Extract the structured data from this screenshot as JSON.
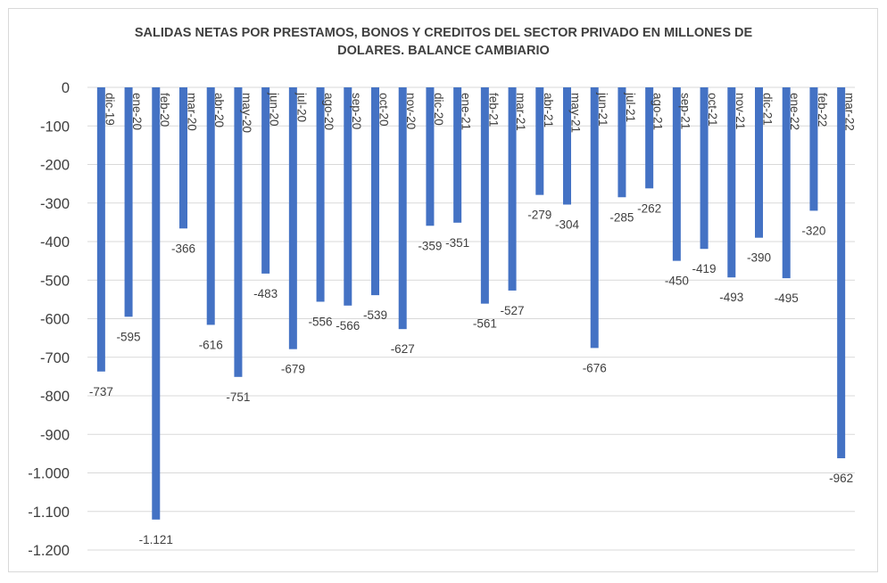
{
  "chart_data": {
    "type": "bar",
    "title_lines": [
      "SALIDAS NETAS POR PRESTAMOS, BONOS Y CREDITOS DEL SECTOR PRIVADO EN MILLONES DE",
      "DOLARES. BALANCE CAMBIARIO"
    ],
    "categories": [
      "dic-19",
      "ene-20",
      "feb-20",
      "mar-20",
      "abr-20",
      "may-20",
      "jun-20",
      "jul-20",
      "ago-20",
      "sep-20",
      "oct-20",
      "nov-20",
      "dic-20",
      "ene-21",
      "feb-21",
      "mar-21",
      "abr-21",
      "may-21",
      "jun-21",
      "jul-21",
      "ago-21",
      "sep-21",
      "oct-21",
      "nov-21",
      "dic-21",
      "ene-22",
      "feb-22",
      "mar-22"
    ],
    "values": [
      -737,
      -595,
      -1121,
      -366,
      -616,
      -751,
      -483,
      -679,
      -556,
      -566,
      -539,
      -627,
      -359,
      -351,
      -561,
      -527,
      -279,
      -304,
      -676,
      -285,
      -262,
      -450,
      -419,
      -493,
      -390,
      -495,
      -320,
      -962
    ],
    "value_labels": [
      "-737",
      "-595",
      "-1.121",
      "-366",
      "-616",
      "-751",
      "-483",
      "-679",
      "-556",
      "-566",
      "-539",
      "-627",
      "-359",
      "-351",
      "-561",
      "-527",
      "-279",
      "-304",
      "-676",
      "-285",
      "-262",
      "-450",
      "-419",
      "-493",
      "-390",
      "-495",
      "-320",
      "-962"
    ],
    "ylim": [
      -1200,
      0
    ],
    "yticks": [
      0,
      -100,
      -200,
      -300,
      -400,
      -500,
      -600,
      -700,
      -800,
      -900,
      -1000,
      -1100,
      -1200
    ],
    "ytick_labels": [
      "0",
      "-100",
      "-200",
      "-300",
      "-400",
      "-500",
      "-600",
      "-700",
      "-800",
      "-900",
      "-1.000",
      "-1.100",
      "-1.200"
    ],
    "grid": true,
    "bar_color": "#4472c4",
    "grid_color": "#d9d9d9",
    "text_color": "#404040"
  }
}
